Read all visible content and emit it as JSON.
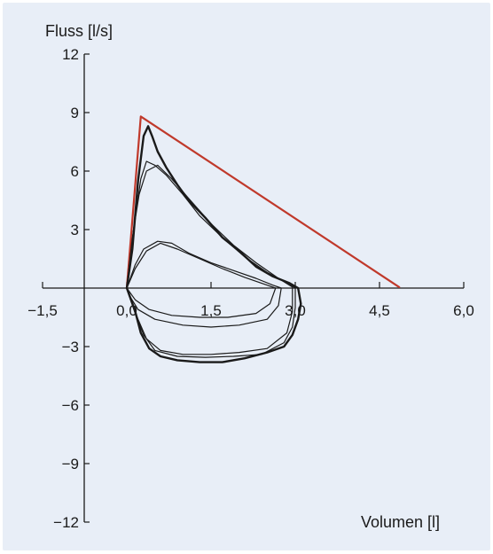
{
  "chart_data": {
    "type": "line",
    "xlabel": "Volumen [l]",
    "ylabel": "Fluss [l/s]",
    "xlim": [
      -1.5,
      6.0
    ],
    "ylim": [
      -12,
      12
    ],
    "x_ticks": [
      {
        "value": -1.5,
        "label": "−1,5"
      },
      {
        "value": 0.0,
        "label": "0,0"
      },
      {
        "value": 1.5,
        "label": "1,5"
      },
      {
        "value": 3.0,
        "label": "3,0"
      },
      {
        "value": 4.5,
        "label": "4,5"
      },
      {
        "value": 6.0,
        "label": "6,0"
      }
    ],
    "y_ticks": [
      {
        "value": 12,
        "label": "12"
      },
      {
        "value": 9,
        "label": "9"
      },
      {
        "value": 6,
        "label": "6"
      },
      {
        "value": 3,
        "label": "3"
      },
      {
        "value": -3,
        "label": "−3"
      },
      {
        "value": -6,
        "label": "−6"
      },
      {
        "value": -9,
        "label": "−9"
      },
      {
        "value": -12,
        "label": "−12"
      }
    ],
    "grid": false,
    "series": [
      {
        "color": "#c0392b",
        "width": 2.2,
        "points": [
          [
            0.0,
            0.0
          ],
          [
            0.25,
            8.8
          ],
          [
            4.85,
            0.05
          ]
        ]
      },
      {
        "color": "#1a1a1a",
        "width": 2.4,
        "points": [
          [
            0.0,
            0.0
          ],
          [
            0.1,
            2.0
          ],
          [
            0.2,
            5.5
          ],
          [
            0.3,
            7.8
          ],
          [
            0.38,
            8.3
          ],
          [
            0.45,
            7.8
          ],
          [
            0.55,
            7.0
          ],
          [
            0.7,
            6.2
          ],
          [
            0.9,
            5.3
          ],
          [
            1.1,
            4.5
          ],
          [
            1.4,
            3.6
          ],
          [
            1.7,
            2.6
          ],
          [
            2.0,
            1.9
          ],
          [
            2.3,
            1.1
          ],
          [
            2.6,
            0.6
          ],
          [
            2.9,
            0.25
          ],
          [
            3.05,
            0.0
          ],
          [
            3.1,
            -0.8
          ],
          [
            3.05,
            -1.6
          ],
          [
            2.95,
            -2.4
          ],
          [
            2.8,
            -3.0
          ],
          [
            2.5,
            -3.3
          ],
          [
            2.1,
            -3.6
          ],
          [
            1.7,
            -3.8
          ],
          [
            1.3,
            -3.8
          ],
          [
            0.9,
            -3.7
          ],
          [
            0.6,
            -3.5
          ],
          [
            0.4,
            -3.1
          ],
          [
            0.25,
            -2.3
          ],
          [
            0.15,
            -1.2
          ],
          [
            0.05,
            -0.4
          ],
          [
            0.0,
            0.0
          ]
        ]
      },
      {
        "color": "#1a1a1a",
        "width": 1.2,
        "points": [
          [
            0.0,
            0.0
          ],
          [
            0.12,
            3.0
          ],
          [
            0.25,
            5.6
          ],
          [
            0.35,
            6.5
          ],
          [
            0.5,
            6.3
          ],
          [
            0.7,
            5.8
          ],
          [
            1.0,
            4.8
          ],
          [
            1.3,
            3.7
          ],
          [
            1.7,
            2.6
          ],
          [
            2.1,
            1.6
          ],
          [
            2.5,
            0.8
          ],
          [
            2.9,
            0.2
          ],
          [
            3.0,
            0.0
          ],
          [
            3.0,
            -1.0
          ],
          [
            2.95,
            -2.0
          ],
          [
            2.8,
            -2.8
          ],
          [
            2.4,
            -3.4
          ],
          [
            1.9,
            -3.5
          ],
          [
            1.4,
            -3.55
          ],
          [
            0.9,
            -3.5
          ],
          [
            0.5,
            -3.2
          ],
          [
            0.3,
            -2.4
          ],
          [
            0.15,
            -1.3
          ],
          [
            0.03,
            -0.3
          ],
          [
            0.0,
            0.0
          ]
        ]
      },
      {
        "color": "#1a1a1a",
        "width": 1.2,
        "points": [
          [
            0.0,
            0.0
          ],
          [
            0.1,
            2.6
          ],
          [
            0.22,
            4.8
          ],
          [
            0.35,
            6.0
          ],
          [
            0.55,
            6.3
          ],
          [
            0.8,
            5.6
          ],
          [
            1.1,
            4.6
          ],
          [
            1.5,
            3.3
          ],
          [
            1.9,
            2.2
          ],
          [
            2.3,
            1.3
          ],
          [
            2.7,
            0.5
          ],
          [
            2.95,
            0.05
          ],
          [
            2.95,
            -1.2
          ],
          [
            2.85,
            -2.3
          ],
          [
            2.5,
            -3.1
          ],
          [
            2.0,
            -3.3
          ],
          [
            1.5,
            -3.4
          ],
          [
            1.0,
            -3.4
          ],
          [
            0.6,
            -3.2
          ],
          [
            0.35,
            -2.6
          ],
          [
            0.2,
            -1.6
          ],
          [
            0.08,
            -0.7
          ],
          [
            0.0,
            0.0
          ]
        ]
      },
      {
        "color": "#1a1a1a",
        "width": 1.2,
        "points": [
          [
            0.0,
            0.0
          ],
          [
            0.15,
            1.2
          ],
          [
            0.3,
            2.0
          ],
          [
            0.55,
            2.4
          ],
          [
            0.8,
            2.3
          ],
          [
            1.1,
            1.8
          ],
          [
            1.5,
            1.3
          ],
          [
            1.9,
            0.9
          ],
          [
            2.3,
            0.5
          ],
          [
            2.6,
            0.15
          ],
          [
            2.75,
            0.0
          ],
          [
            2.7,
            -0.9
          ],
          [
            2.5,
            -1.6
          ],
          [
            2.0,
            -1.9
          ],
          [
            1.5,
            -2.0
          ],
          [
            1.0,
            -1.9
          ],
          [
            0.5,
            -1.6
          ],
          [
            0.2,
            -1.1
          ],
          [
            0.05,
            -0.4
          ],
          [
            0.0,
            0.0
          ]
        ]
      },
      {
        "color": "#1a1a1a",
        "width": 1.2,
        "points": [
          [
            0.0,
            0.0
          ],
          [
            0.15,
            1.0
          ],
          [
            0.35,
            1.9
          ],
          [
            0.6,
            2.3
          ],
          [
            0.9,
            2.0
          ],
          [
            1.3,
            1.5
          ],
          [
            1.7,
            1.0
          ],
          [
            2.1,
            0.55
          ],
          [
            2.5,
            0.15
          ],
          [
            2.65,
            0.0
          ],
          [
            2.55,
            -0.8
          ],
          [
            2.3,
            -1.3
          ],
          [
            1.8,
            -1.5
          ],
          [
            1.3,
            -1.5
          ],
          [
            0.8,
            -1.4
          ],
          [
            0.4,
            -1.1
          ],
          [
            0.15,
            -0.6
          ],
          [
            0.0,
            0.0
          ]
        ]
      }
    ]
  }
}
